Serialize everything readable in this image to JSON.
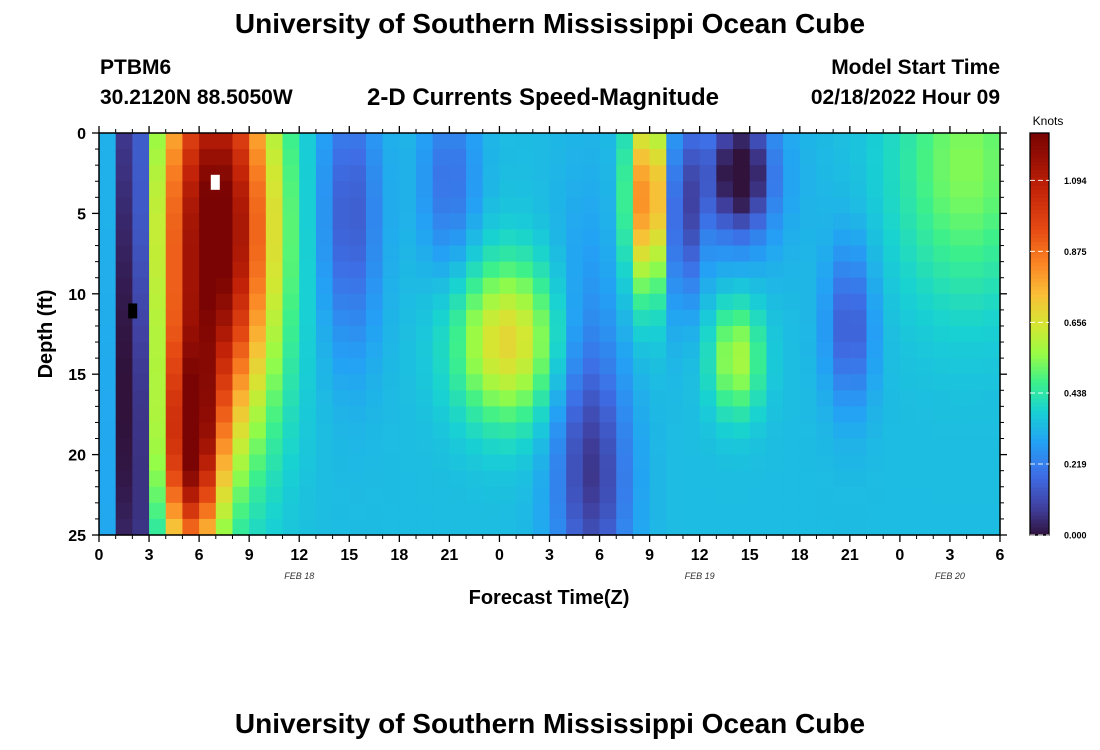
{
  "header": {
    "title": "University of Southern Mississippi Ocean Cube",
    "station": "PTBM6",
    "coords": "30.2120N  88.5050W",
    "subtitle": "2-D Currents Speed-Magnitude",
    "model_start_label": "Model Start Time",
    "model_start_value": "02/18/2022 Hour 09"
  },
  "footer": {
    "title": "University of Southern Mississippi Ocean Cube"
  },
  "chart_data": {
    "type": "heatmap",
    "title": "2-D Currents Speed-Magnitude",
    "xlabel": "Forecast Time(Z)",
    "ylabel": "Depth (ft)",
    "x_range_hours": [
      0,
      54
    ],
    "y_range_ft": [
      0,
      25
    ],
    "y_inverted": true,
    "x_ticks": [
      {
        "hour": 0,
        "label": "0"
      },
      {
        "hour": 3,
        "label": "3"
      },
      {
        "hour": 6,
        "label": "6"
      },
      {
        "hour": 9,
        "label": "9"
      },
      {
        "hour": 12,
        "label": "12"
      },
      {
        "hour": 15,
        "label": "15"
      },
      {
        "hour": 18,
        "label": "18"
      },
      {
        "hour": 21,
        "label": "21"
      },
      {
        "hour": 24,
        "label": "0"
      },
      {
        "hour": 27,
        "label": "3"
      },
      {
        "hour": 30,
        "label": "6"
      },
      {
        "hour": 33,
        "label": "9"
      },
      {
        "hour": 36,
        "label": "12"
      },
      {
        "hour": 39,
        "label": "15"
      },
      {
        "hour": 42,
        "label": "18"
      },
      {
        "hour": 45,
        "label": "21"
      },
      {
        "hour": 48,
        "label": "0"
      },
      {
        "hour": 51,
        "label": "3"
      },
      {
        "hour": 54,
        "label": "6"
      }
    ],
    "y_ticks": [
      0,
      5,
      10,
      15,
      20,
      25
    ],
    "date_labels": [
      {
        "hour": 12,
        "label": "FEB 18"
      },
      {
        "hour": 36,
        "label": "FEB 19"
      },
      {
        "hour": 51,
        "label": "FEB 20"
      }
    ],
    "colorbar": {
      "label": "Knots",
      "min": 0.0,
      "max": 1.24,
      "ticks": [
        0.0,
        0.219,
        0.438,
        0.656,
        0.875,
        1.094
      ],
      "tick_labels": [
        "0.000",
        "0.219",
        "0.438",
        "0.656",
        "0.875",
        "1.094"
      ]
    },
    "grid_resolution": {
      "time_step_hours": 1,
      "depth_levels": 25
    },
    "speed_features_knots": [
      {
        "hour": 2,
        "depth": 12,
        "sigma_h": 0.7,
        "sigma_d": 20,
        "amp": -0.5,
        "note": "minimum near 0 kn at hour 2, all depths"
      },
      {
        "hour": 7,
        "depth": 6,
        "sigma_h": 2.4,
        "sigma_d": 9,
        "amp": 0.95,
        "note": "maximum ~1.2 kn, hours 5-10"
      },
      {
        "hour": 5.5,
        "depth": 20,
        "sigma_h": 1.2,
        "sigma_d": 5,
        "amp": 0.7
      },
      {
        "hour": 15,
        "depth": 5,
        "sigma_h": 1.3,
        "sigma_d": 6,
        "amp": -0.2
      },
      {
        "hour": 21,
        "depth": 3,
        "sigma_h": 1.2,
        "sigma_d": 4,
        "amp": -0.15
      },
      {
        "hour": 24.5,
        "depth": 13,
        "sigma_h": 2.2,
        "sigma_d": 3.5,
        "amp": 0.35,
        "note": "core ~0.7 kn near depth 13 ft"
      },
      {
        "hour": 29,
        "depth": 18,
        "sigma_h": 1.5,
        "sigma_d": 8,
        "amp": -0.15
      },
      {
        "hour": 30,
        "depth": 22,
        "sigma_h": 1.5,
        "sigma_d": 5,
        "amp": -0.15
      },
      {
        "hour": 33,
        "depth": 4,
        "sigma_h": 0.9,
        "sigma_d": 4,
        "amp": 0.6,
        "note": "~0.95 kn near hour 33"
      },
      {
        "hour": 34.8,
        "depth": 5,
        "sigma_h": 0.8,
        "sigma_d": 4,
        "amp": -0.25
      },
      {
        "hour": 38.2,
        "depth": 14,
        "sigma_h": 1.1,
        "sigma_d": 2.5,
        "amp": 0.25
      },
      {
        "hour": 38.5,
        "depth": 2.5,
        "sigma_h": 1.2,
        "sigma_d": 2.5,
        "amp": -0.32
      },
      {
        "hour": 37,
        "depth": 3,
        "sigma_h": 3.0,
        "sigma_d": 4,
        "amp": -0.1
      },
      {
        "hour": 45,
        "depth": 12,
        "sigma_h": 1.0,
        "sigma_d": 3.5,
        "amp": -0.2
      },
      {
        "hour": 52,
        "depth": 2,
        "sigma_h": 3.0,
        "sigma_d": 6,
        "amp": 0.2
      }
    ],
    "speed_baseline_knots": 0.34
  }
}
